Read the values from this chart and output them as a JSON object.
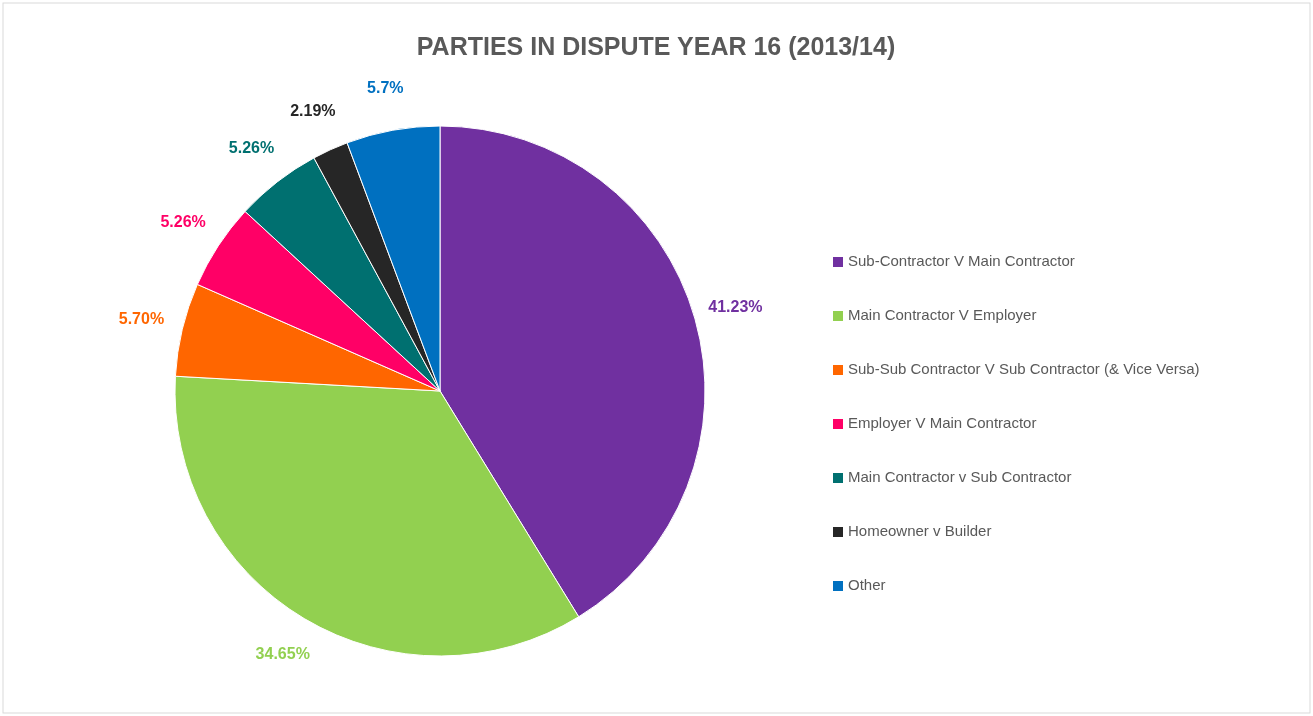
{
  "chart_data": {
    "type": "pie",
    "title": "PARTIES IN DISPUTE YEAR 16 (2013/14)",
    "categories": [
      "Sub-Contractor V Main Contractor",
      "Main Contractor V Employer",
      "Sub-Sub Contractor V Sub Contractor (& Vice Versa)",
      "Employer V Main Contractor",
      "Main Contractor v Sub Contractor",
      "Homeowner v Builder",
      "Other"
    ],
    "values": [
      41.23,
      34.65,
      5.7,
      5.26,
      5.26,
      2.19,
      5.7
    ],
    "value_labels": [
      "41.23%",
      "34.65%",
      "5.70%",
      "5.26%",
      "5.26%",
      "2.19%",
      "5.7%"
    ],
    "colors": [
      "#7030a0",
      "#92d050",
      "#ff6600",
      "#ff0066",
      "#007070",
      "#262626",
      "#0070c0"
    ],
    "legend": "right"
  }
}
